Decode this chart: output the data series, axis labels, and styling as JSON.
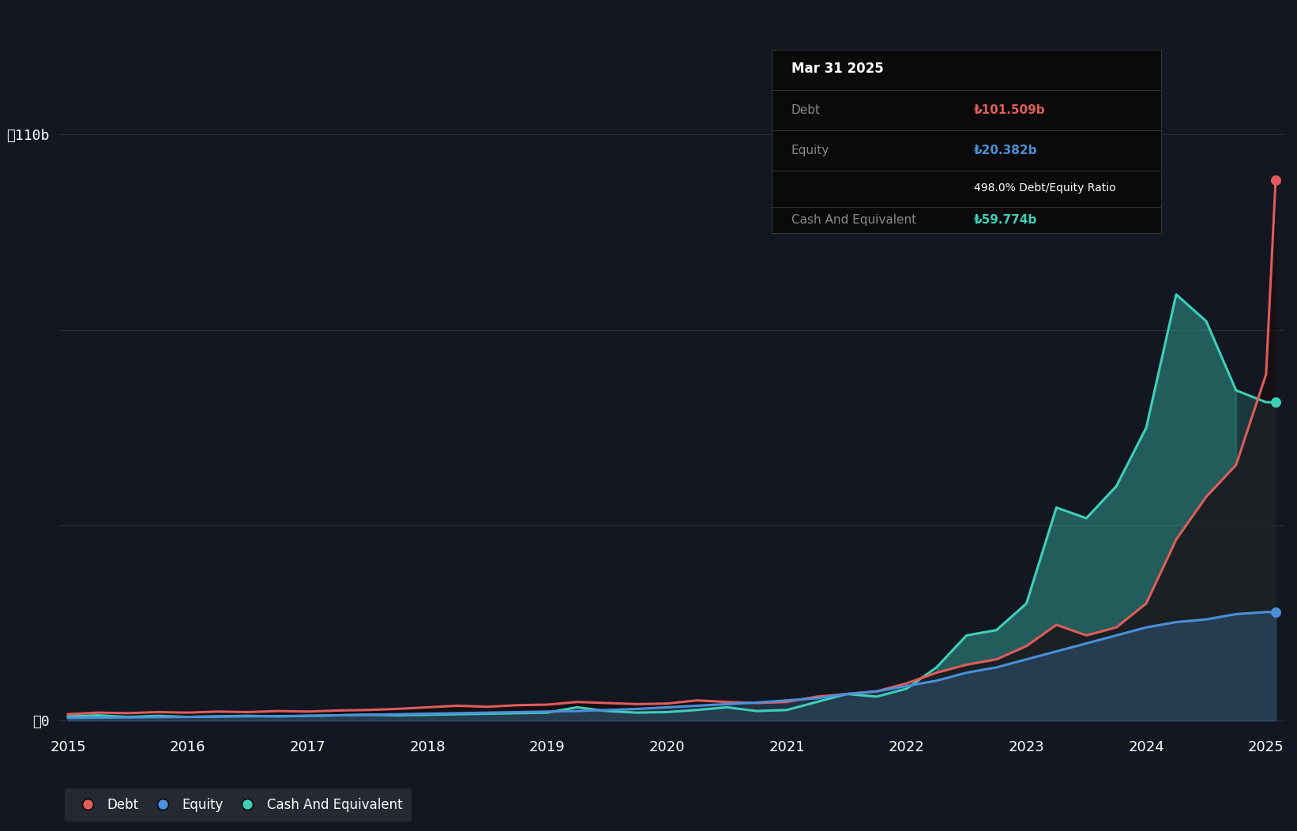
{
  "background_color": "#131722",
  "plot_bg_color": "#131722",
  "grid_color": "#2a2e39",
  "debt_color": "#e05c5c",
  "equity_color": "#4a90d9",
  "cash_color": "#3ecfb8",
  "legend_bg": "#2a2e39",
  "annotation_date": "Mar 31 2025",
  "annotation_debt_label": "Debt",
  "annotation_debt_val": "₺101.509b",
  "annotation_equity_label": "Equity",
  "annotation_equity_val": "₺20.382b",
  "annotation_ratio": "498.0%",
  "annotation_ratio_label": "Debt/Equity Ratio",
  "annotation_cash_label": "Cash And Equivalent",
  "annotation_cash_val": "₺59.774b",
  "y_label_110": "₺110b",
  "y_label_0": "₺0",
  "years": [
    2015.0,
    2015.25,
    2015.5,
    2015.75,
    2016.0,
    2016.25,
    2016.5,
    2016.75,
    2017.0,
    2017.25,
    2017.5,
    2017.75,
    2018.0,
    2018.25,
    2018.5,
    2018.75,
    2019.0,
    2019.25,
    2019.5,
    2019.75,
    2020.0,
    2020.25,
    2020.5,
    2020.75,
    2021.0,
    2021.25,
    2021.5,
    2021.75,
    2022.0,
    2022.25,
    2022.5,
    2022.75,
    2023.0,
    2023.25,
    2023.5,
    2023.75,
    2024.0,
    2024.25,
    2024.5,
    2024.75,
    2025.0,
    2025.08
  ],
  "debt_values": [
    1.2,
    1.5,
    1.4,
    1.6,
    1.5,
    1.7,
    1.6,
    1.8,
    1.7,
    1.9,
    2.0,
    2.2,
    2.5,
    2.8,
    2.6,
    2.9,
    3.0,
    3.5,
    3.3,
    3.1,
    3.2,
    3.8,
    3.5,
    3.3,
    3.5,
    4.5,
    5.0,
    5.5,
    7.0,
    9.0,
    10.5,
    11.5,
    14.0,
    18.0,
    16.0,
    17.5,
    22.0,
    34.0,
    42.0,
    48.0,
    65.0,
    101.509
  ],
  "equity_values": [
    0.5,
    0.55,
    0.6,
    0.65,
    0.7,
    0.75,
    0.8,
    0.85,
    0.9,
    1.0,
    1.1,
    1.2,
    1.3,
    1.4,
    1.5,
    1.6,
    1.7,
    1.8,
    2.0,
    2.2,
    2.5,
    2.8,
    3.1,
    3.4,
    3.8,
    4.2,
    5.0,
    5.5,
    6.5,
    7.5,
    9.0,
    10.0,
    11.5,
    13.0,
    14.5,
    16.0,
    17.5,
    18.5,
    19.0,
    20.0,
    20.382,
    20.382
  ],
  "cash_values": [
    0.8,
    1.0,
    0.7,
    0.9,
    0.7,
    0.8,
    0.9,
    0.8,
    0.9,
    1.0,
    1.1,
    1.0,
    1.1,
    1.2,
    1.3,
    1.4,
    1.5,
    2.5,
    1.8,
    1.5,
    1.6,
    2.0,
    2.5,
    1.8,
    2.0,
    3.5,
    5.0,
    4.5,
    6.0,
    10.0,
    16.0,
    17.0,
    22.0,
    40.0,
    38.0,
    44.0,
    55.0,
    80.0,
    75.0,
    62.0,
    59.774,
    59.774
  ],
  "ylim_max": 115,
  "ylim_min": -2,
  "xlim_min": 2014.92,
  "xlim_max": 2025.15
}
